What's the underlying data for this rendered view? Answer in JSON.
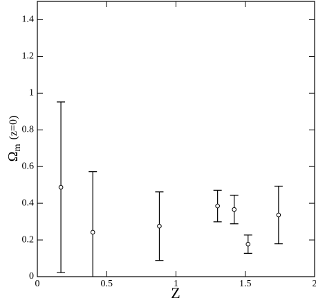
{
  "chart_data": {
    "type": "errorbar",
    "x_label": "Z",
    "y_label": {
      "symbol": "Ω",
      "subscript": "m",
      "suffix": "(z=0)"
    },
    "x": [
      0.17,
      0.4,
      0.88,
      1.3,
      1.42,
      1.52,
      1.74
    ],
    "values": [
      0.487,
      0.242,
      0.275,
      0.385,
      0.366,
      0.177,
      0.336
    ],
    "errors": [
      0.465,
      0.33,
      0.187,
      0.086,
      0.078,
      0.05,
      0.157
    ],
    "color": "#000000",
    "xlim": [
      0,
      2
    ],
    "xticks": [
      0,
      0.5,
      1,
      1.5,
      2
    ],
    "ylim": [
      0,
      1.5
    ],
    "yticks": [
      0,
      0.2,
      0.4,
      0.6,
      0.8,
      1,
      1.2,
      1.4
    ]
  }
}
